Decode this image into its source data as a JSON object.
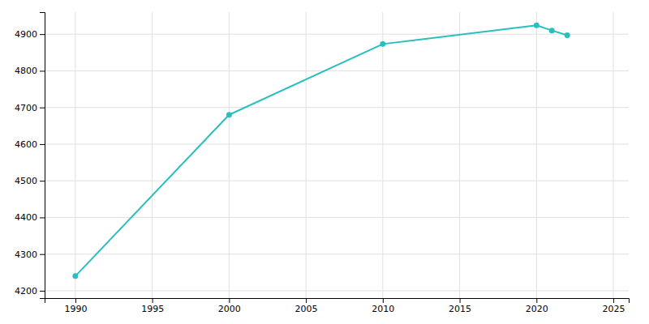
{
  "chart_data": {
    "type": "line",
    "x": [
      1990,
      2000,
      2010,
      2020,
      2021,
      2022
    ],
    "values": [
      4240,
      4680,
      4873,
      4924,
      4910,
      4897
    ],
    "color": "#2abfbf",
    "marker": "circle",
    "xlim": [
      1988,
      2026
    ],
    "ylim": [
      4180,
      4960
    ],
    "xticks": [
      1990,
      1995,
      2000,
      2005,
      2010,
      2015,
      2020,
      2025
    ],
    "yticks": [
      4200,
      4300,
      4400,
      4500,
      4600,
      4700,
      4800,
      4900
    ],
    "grid": true
  }
}
